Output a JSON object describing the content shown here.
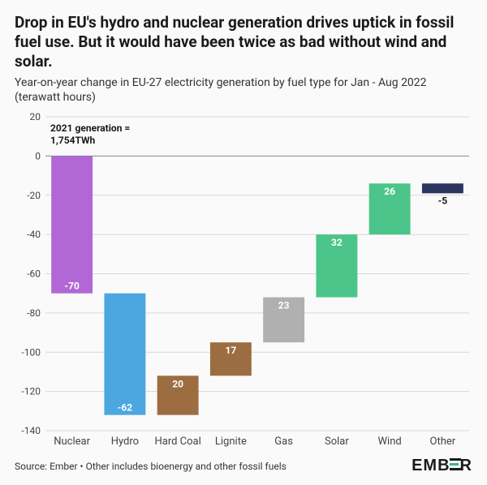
{
  "title": "Drop in EU's hydro and nuclear generation drives uptick in fossil fuel use. But it would have been twice as bad without wind and solar.",
  "subtitle": "Year-on-year change in EU-27 electricity generation by fuel type for Jan - Aug 2022 (terawatt hours)",
  "note_line1": "2021 generation =",
  "note_line2": "1,754TWh",
  "source": "Source: Ember • Other includes bioenergy and other fossil fuels",
  "logo_text": "EMBER",
  "chart": {
    "type": "waterfall",
    "ylim": [
      -140,
      20
    ],
    "ytick_step": 20,
    "yticks": [
      20,
      0,
      -20,
      -40,
      -60,
      -80,
      -100,
      -120,
      -140
    ],
    "grid_color": "#d8d8d8",
    "zero_line_color": "#888888",
    "background_color": "#fafafa",
    "label_fontsize": 12,
    "tick_fontsize": 12,
    "bar_width": 0.78,
    "title_fontsize": 19,
    "subtitle_fontsize": 14,
    "categories": [
      "Nuclear",
      "Hydro",
      "Hard Coal",
      "Lignite",
      "Gas",
      "Solar",
      "Wind",
      "Other"
    ],
    "values": [
      -70,
      -62,
      20,
      17,
      23,
      32,
      26,
      -5
    ],
    "bar_colors": [
      "#b267d6",
      "#4ca6e0",
      "#9c6d40",
      "#9c6d40",
      "#b0b0b0",
      "#4BC589",
      "#4BC589",
      "#2a3560"
    ],
    "label_inside_color": "#ffffff",
    "label_outside_color": "#1a1a1a"
  }
}
